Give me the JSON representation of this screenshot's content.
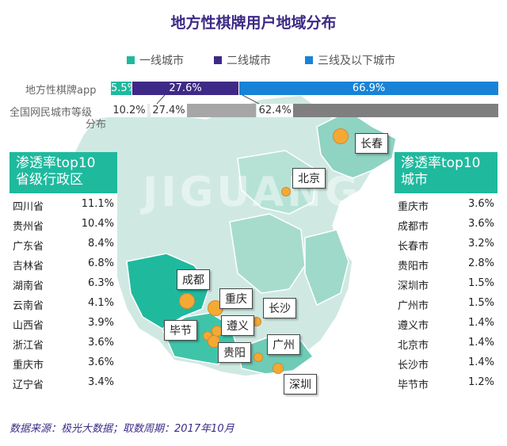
{
  "title": "地方性棋牌用户地域分布",
  "legend": [
    {
      "label": "一线城市",
      "color": "#1fb99e"
    },
    {
      "label": "二线城市",
      "color": "#3d2a86"
    },
    {
      "label": "三线及以下城市",
      "color": "#1883d6"
    }
  ],
  "bars": {
    "app_label": "地方性棋牌app",
    "national_label_1": "全国网民城市等级",
    "national_label_2": "分布",
    "app": [
      {
        "tier": "一线城市",
        "value": 5.5,
        "label": "5.5%"
      },
      {
        "tier": "二线城市",
        "value": 27.6,
        "label": "27.6%"
      },
      {
        "tier": "三线及以下城市",
        "value": 66.9,
        "label": "66.9%"
      }
    ],
    "national": [
      {
        "tier": "一线城市",
        "value": 10.2,
        "label": "10.2%"
      },
      {
        "tier": "二线城市",
        "value": 27.4,
        "label": "27.4%"
      },
      {
        "tier": "三线及以下城市",
        "value": 62.4,
        "label": "62.4%"
      }
    ]
  },
  "left_panel": {
    "title_1": "渗透率top10",
    "title_2": "省级行政区",
    "rows": [
      {
        "name": "四川省",
        "value": "11.1%"
      },
      {
        "name": "贵州省",
        "value": "10.4%"
      },
      {
        "name": "广东省",
        "value": "8.4%"
      },
      {
        "name": "吉林省",
        "value": "6.8%"
      },
      {
        "name": "湖南省",
        "value": "6.3%"
      },
      {
        "name": "云南省",
        "value": "4.1%"
      },
      {
        "name": "山西省",
        "value": "3.9%"
      },
      {
        "name": "浙江省",
        "value": "3.6%"
      },
      {
        "name": "重庆市",
        "value": "3.6%"
      },
      {
        "name": "辽宁省",
        "value": "3.4%"
      }
    ]
  },
  "right_panel": {
    "title_1": "渗透率top10",
    "title_2": "城市",
    "rows": [
      {
        "name": "重庆市",
        "value": "3.6%"
      },
      {
        "name": "成都市",
        "value": "3.6%"
      },
      {
        "name": "长春市",
        "value": "3.2%"
      },
      {
        "name": "贵阳市",
        "value": "2.8%"
      },
      {
        "name": "深圳市",
        "value": "1.5%"
      },
      {
        "name": "广州市",
        "value": "1.5%"
      },
      {
        "name": "遵义市",
        "value": "1.4%"
      },
      {
        "name": "北京市",
        "value": "1.4%"
      },
      {
        "name": "长沙市",
        "value": "1.4%"
      },
      {
        "name": "毕节市",
        "value": "1.2%"
      }
    ]
  },
  "map_cities": [
    "长春",
    "北京",
    "成都",
    "重庆",
    "长沙",
    "遵义",
    "毕节",
    "贵阳",
    "广州",
    "深圳"
  ],
  "watermark": "JIGUANG 极光 数据服务",
  "source": "数据来源：极光大数据；取数周期：2017年10月",
  "colors": {
    "teal": "#1fb99e",
    "purple": "#3d2a86",
    "blue": "#1883d6",
    "gray": "#a6a6a6",
    "darkgray": "#7f7f7f",
    "dot": "#f4a935"
  },
  "chart_data": {
    "type": "bar",
    "orientation": "horizontal-stacked",
    "categories": [
      "地方性棋牌app",
      "全国网民城市等级分布"
    ],
    "series": [
      {
        "name": "一线城市",
        "values": [
          5.5,
          10.2
        ]
      },
      {
        "name": "二线城市",
        "values": [
          27.6,
          27.4
        ]
      },
      {
        "name": "三线及以下城市",
        "values": [
          66.9,
          62.4
        ]
      }
    ],
    "title": "地方性棋牌用户地域分布",
    "legend": "top"
  }
}
